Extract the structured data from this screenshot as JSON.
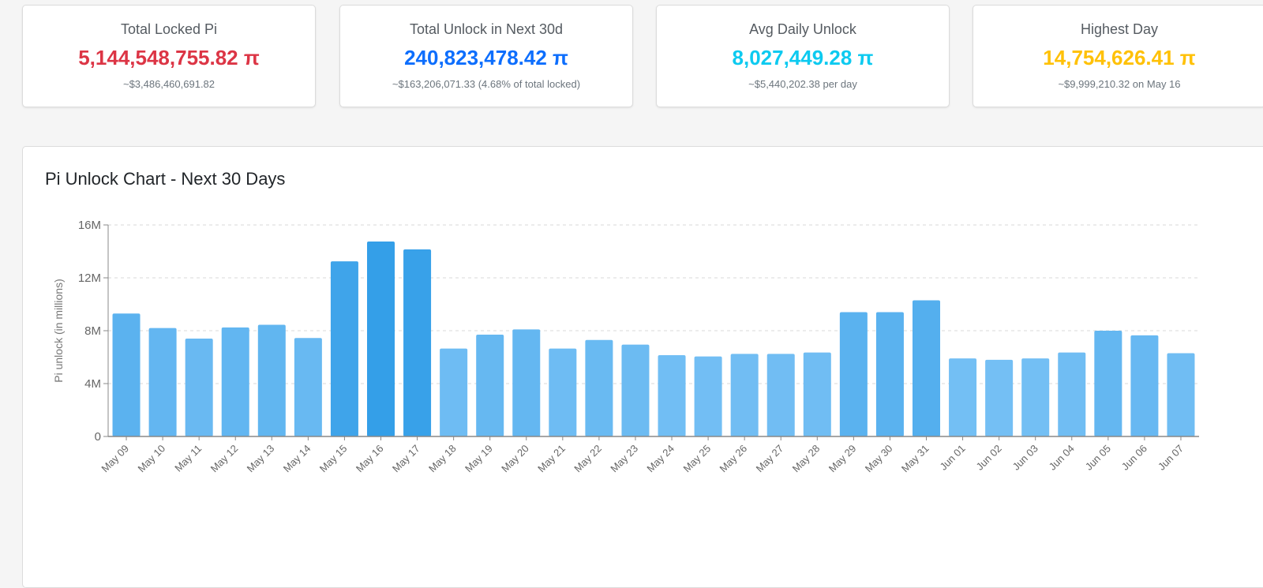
{
  "cards": [
    {
      "title": "Total Locked Pi",
      "value": "5,144,548,755.82 π",
      "sub": "~$3,486,460,691.82",
      "color": "#dc3545"
    },
    {
      "title": "Total Unlock in Next 30d",
      "value": "240,823,478.42 π",
      "sub": "~$163,206,071.33 (4.68% of total locked)",
      "color": "#0d6efd"
    },
    {
      "title": "Avg Daily Unlock",
      "value": "8,027,449.28 π",
      "sub": "~$5,440,202.38 per day",
      "color": "#0dcaf0"
    },
    {
      "title": "Highest Day",
      "value": "14,754,626.41 π",
      "sub": "~$9,999,210.32 on May 16",
      "color": "#ffc107"
    }
  ],
  "chart_title": "Pi Unlock Chart - Next 30 Days",
  "chart_data": {
    "type": "bar",
    "categories": [
      "May 09",
      "May 10",
      "May 11",
      "May 12",
      "May 13",
      "May 14",
      "May 15",
      "May 16",
      "May 17",
      "May 18",
      "May 19",
      "May 20",
      "May 21",
      "May 22",
      "May 23",
      "May 24",
      "May 25",
      "May 26",
      "May 27",
      "May 28",
      "May 29",
      "May 30",
      "May 31",
      "Jun 01",
      "Jun 02",
      "Jun 03",
      "Jun 04",
      "Jun 05",
      "Jun 06",
      "Jun 07"
    ],
    "values": [
      9.3,
      8.2,
      7.4,
      8.25,
      8.45,
      7.45,
      13.25,
      14.75,
      14.15,
      6.65,
      7.7,
      8.1,
      6.65,
      7.3,
      6.95,
      6.15,
      6.05,
      6.25,
      6.25,
      6.35,
      9.4,
      9.4,
      10.3,
      5.9,
      5.8,
      5.9,
      6.35,
      8.0,
      7.65,
      6.3
    ],
    "unit": "M",
    "ylabel": "Pi unlock (in millions)",
    "ylim": [
      0,
      16
    ],
    "yticks": [
      {
        "value": 0,
        "label": "0"
      },
      {
        "value": 4,
        "label": "4M"
      },
      {
        "value": 8,
        "label": "8M"
      },
      {
        "value": 12,
        "label": "12M"
      },
      {
        "value": 16,
        "label": "16M"
      }
    ],
    "grid": true,
    "bar_color_light": "#74bff4",
    "bar_color_dark": "#349fe8"
  }
}
